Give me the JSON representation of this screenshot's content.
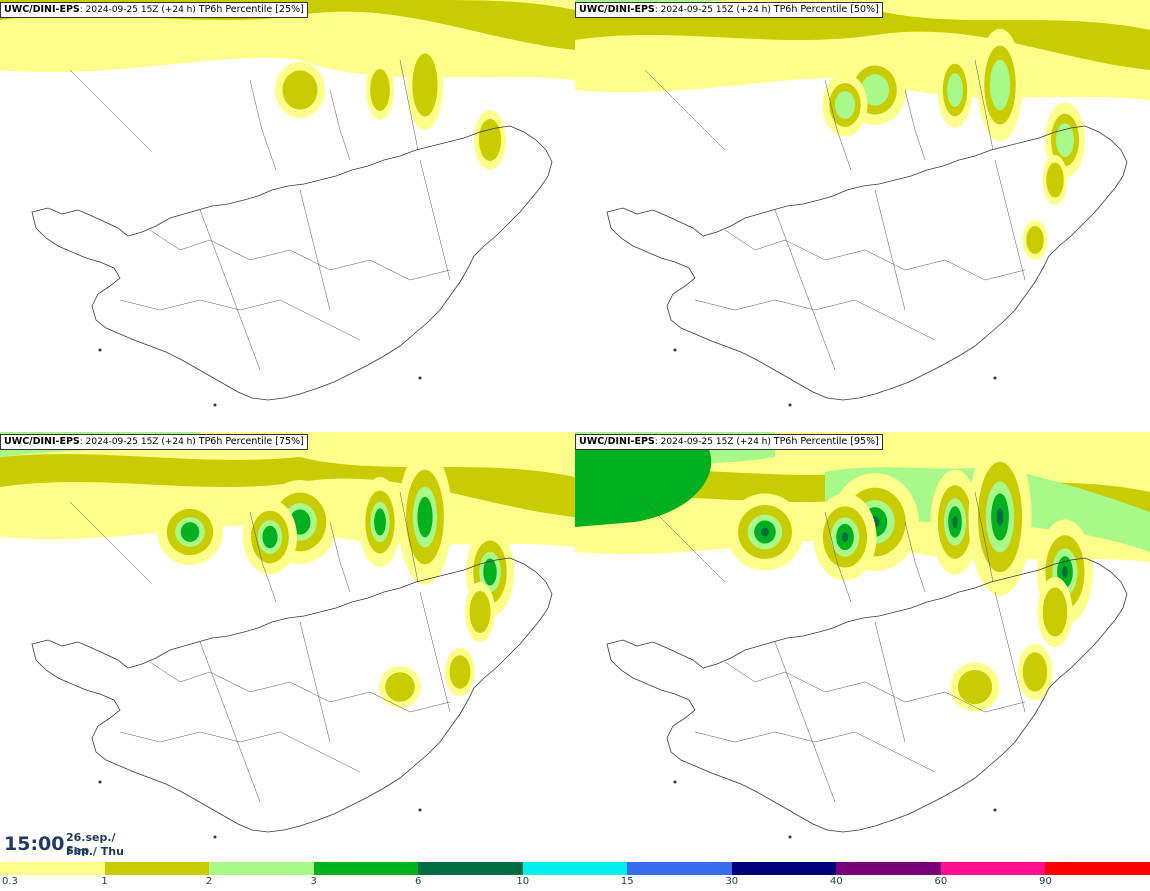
{
  "panels": [
    {
      "model": "UWC/DINI-EPS",
      "run": ": 2024-09-25 15Z (+24 h) ",
      "field": "TP6h Percentile ",
      "percentile": "[25%]",
      "level": 1
    },
    {
      "model": "UWC/DINI-EPS",
      "run": ": 2024-09-25 15Z (+24 h) ",
      "field": "TP6h Percentile ",
      "percentile": "[50%]",
      "level": 2
    },
    {
      "model": "UWC/DINI-EPS",
      "run": ": 2024-09-25 15Z (+24 h) ",
      "field": "TP6h Percentile ",
      "percentile": "[75%]",
      "level": 3
    },
    {
      "model": "UWC/DINI-EPS",
      "run": ": 2024-09-25 15Z (+24 h) ",
      "field": "TP6h Percentile ",
      "percentile": "[95%]",
      "level": 4
    }
  ],
  "valid_time": {
    "time": "15:00",
    "date_line1": "26.sep./ Sep",
    "date_line2": "Fim./ Thu"
  },
  "legend": {
    "colors": [
      "#fefe8a",
      "#c8cc00",
      "#a8f88a",
      "#00b020",
      "#006e40",
      "#00f0f0",
      "#3a6cf0",
      "#000078",
      "#780078",
      "#ff1090",
      "#ff0000"
    ],
    "labels": [
      "0.3",
      "1",
      "2",
      "3",
      "6",
      "10",
      "15",
      "30",
      "40",
      "60",
      "90"
    ]
  }
}
